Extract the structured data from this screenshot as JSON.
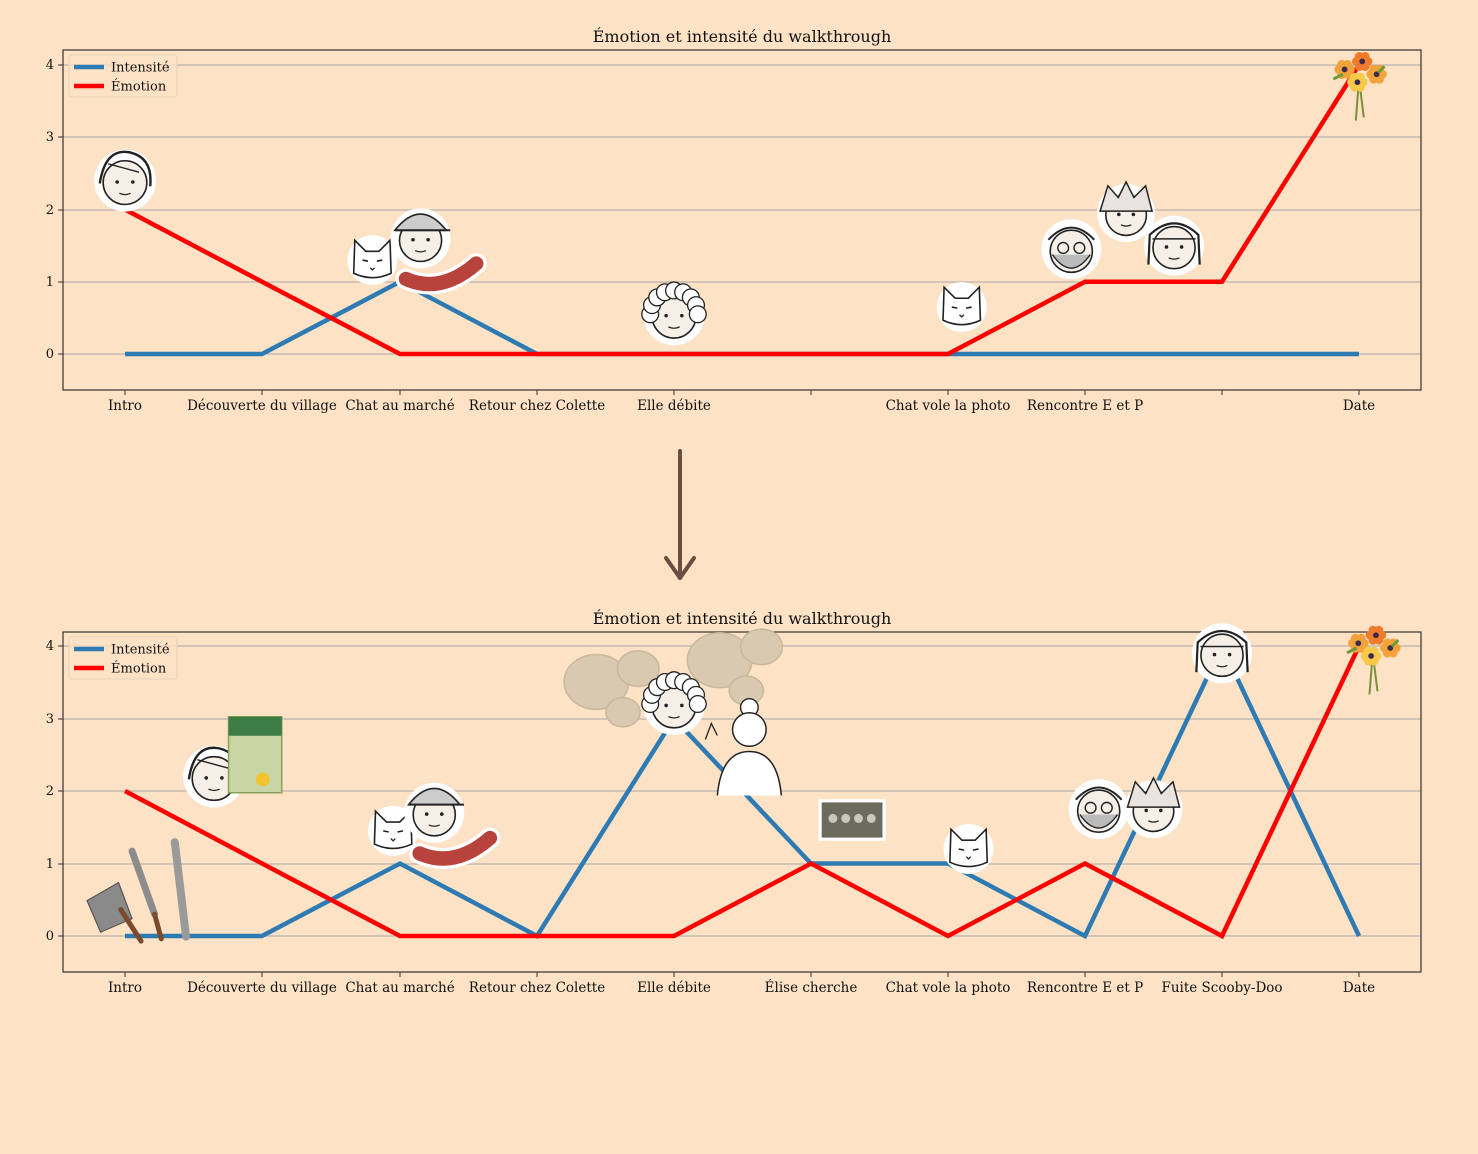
{
  "background_color": "#fde2c5",
  "colors": {
    "intensity": "#2e7bb4",
    "emotion": "#ff0000",
    "arrow": "#6b4c40",
    "grid": "#b8b2ad",
    "frame": "#333333"
  },
  "arrow": {
    "direction": "down",
    "icon": "down-arrow-icon"
  },
  "chart_data": [
    {
      "type": "line",
      "title": "Émotion et intensité du walkthrough",
      "categories": [
        "Intro",
        "Découverte du village",
        "Chat au marché",
        "Retour chez Colette",
        "Elle débite",
        "",
        "Chat vole la photo",
        "Rencontre E et P",
        "",
        "Date"
      ],
      "series": [
        {
          "name": "Intensité",
          "values": [
            0,
            0,
            1,
            0,
            0,
            0,
            0,
            0,
            0,
            0
          ]
        },
        {
          "name": "Émotion",
          "values": [
            2,
            1,
            0,
            0,
            0,
            0,
            0,
            1,
            1,
            4
          ]
        }
      ],
      "yticks": [
        "0",
        "1",
        "2",
        "3",
        "4"
      ],
      "ylim": [
        -0.5,
        4.25
      ],
      "grid": "horizontal",
      "legend": "top-left",
      "illustrations": [
        {
          "icon": "girl-portrait-icon",
          "category": 0,
          "value": 2.4
        },
        {
          "icon": "cat-head-icon",
          "category": 1.8,
          "value": 1.3
        },
        {
          "icon": "old-man-cap-icon",
          "category": 2.15,
          "value": 1.6
        },
        {
          "icon": "sausage-icon",
          "category": 2.3,
          "value": 1.1
        },
        {
          "icon": "grandma-portrait-icon",
          "category": 4,
          "value": 0.55
        },
        {
          "icon": "cat-head-icon",
          "category": 6.1,
          "value": 0.65
        },
        {
          "icon": "bearded-man-icon",
          "category": 6.9,
          "value": 1.45
        },
        {
          "icon": "spiky-hair-boy-icon",
          "category": 7.3,
          "value": 1.95
        },
        {
          "icon": "bob-hair-girl-icon",
          "category": 7.65,
          "value": 1.5
        },
        {
          "icon": "flower-bouquet-icon",
          "category": 9,
          "value": 3.85
        }
      ]
    },
    {
      "type": "line",
      "title": "Émotion et intensité du walkthrough",
      "categories": [
        "Intro",
        "Découverte du village",
        "Chat au marché",
        "Retour chez Colette",
        "Elle débite",
        "Élise cherche",
        "Chat vole la photo",
        "Rencontre E et P",
        "Fuite Scooby-Doo",
        "Date"
      ],
      "series": [
        {
          "name": "Intensité",
          "values": [
            0,
            0,
            1,
            0,
            3,
            1,
            1,
            0,
            4,
            0
          ]
        },
        {
          "name": "Émotion",
          "values": [
            2,
            1,
            0,
            0,
            0,
            1,
            0,
            1,
            0,
            4
          ]
        }
      ],
      "yticks": [
        "0",
        "1",
        "2",
        "3",
        "4"
      ],
      "ylim": [
        -0.5,
        4.25
      ],
      "grid": "horizontal",
      "legend": "top-left",
      "illustrations": [
        {
          "icon": "mortar-pestle-tools-icon",
          "category": 0.15,
          "value": 0.55
        },
        {
          "icon": "girl-portrait-icon",
          "category": 0.65,
          "value": 2.2
        },
        {
          "icon": "seed-packet-icon",
          "category": 0.95,
          "value": 2.5
        },
        {
          "icon": "cat-head-icon",
          "category": 1.95,
          "value": 1.45
        },
        {
          "icon": "old-man-cap-icon",
          "category": 2.25,
          "value": 1.7
        },
        {
          "icon": "sausage-icon",
          "category": 2.4,
          "value": 1.2
        },
        {
          "icon": "speech-bubbles-icon",
          "category": 3.6,
          "value": 3.4
        },
        {
          "icon": "grandma-portrait-icon",
          "category": 4,
          "value": 3.2
        },
        {
          "icon": "speech-bubbles-icon",
          "category": 4.5,
          "value": 3.7
        },
        {
          "icon": "woman-bun-icon",
          "category": 4.55,
          "value": 2.6
        },
        {
          "icon": "old-photo-icon",
          "category": 5.3,
          "value": 1.6
        },
        {
          "icon": "cat-head-icon",
          "category": 6.15,
          "value": 1.2
        },
        {
          "icon": "bearded-man-icon",
          "category": 7.1,
          "value": 1.75
        },
        {
          "icon": "spiky-hair-boy-icon",
          "category": 7.5,
          "value": 1.75
        },
        {
          "icon": "bob-hair-girl-icon",
          "category": 8,
          "value": 3.9
        },
        {
          "icon": "flower-bouquet-icon",
          "category": 9.1,
          "value": 3.95
        }
      ]
    }
  ]
}
